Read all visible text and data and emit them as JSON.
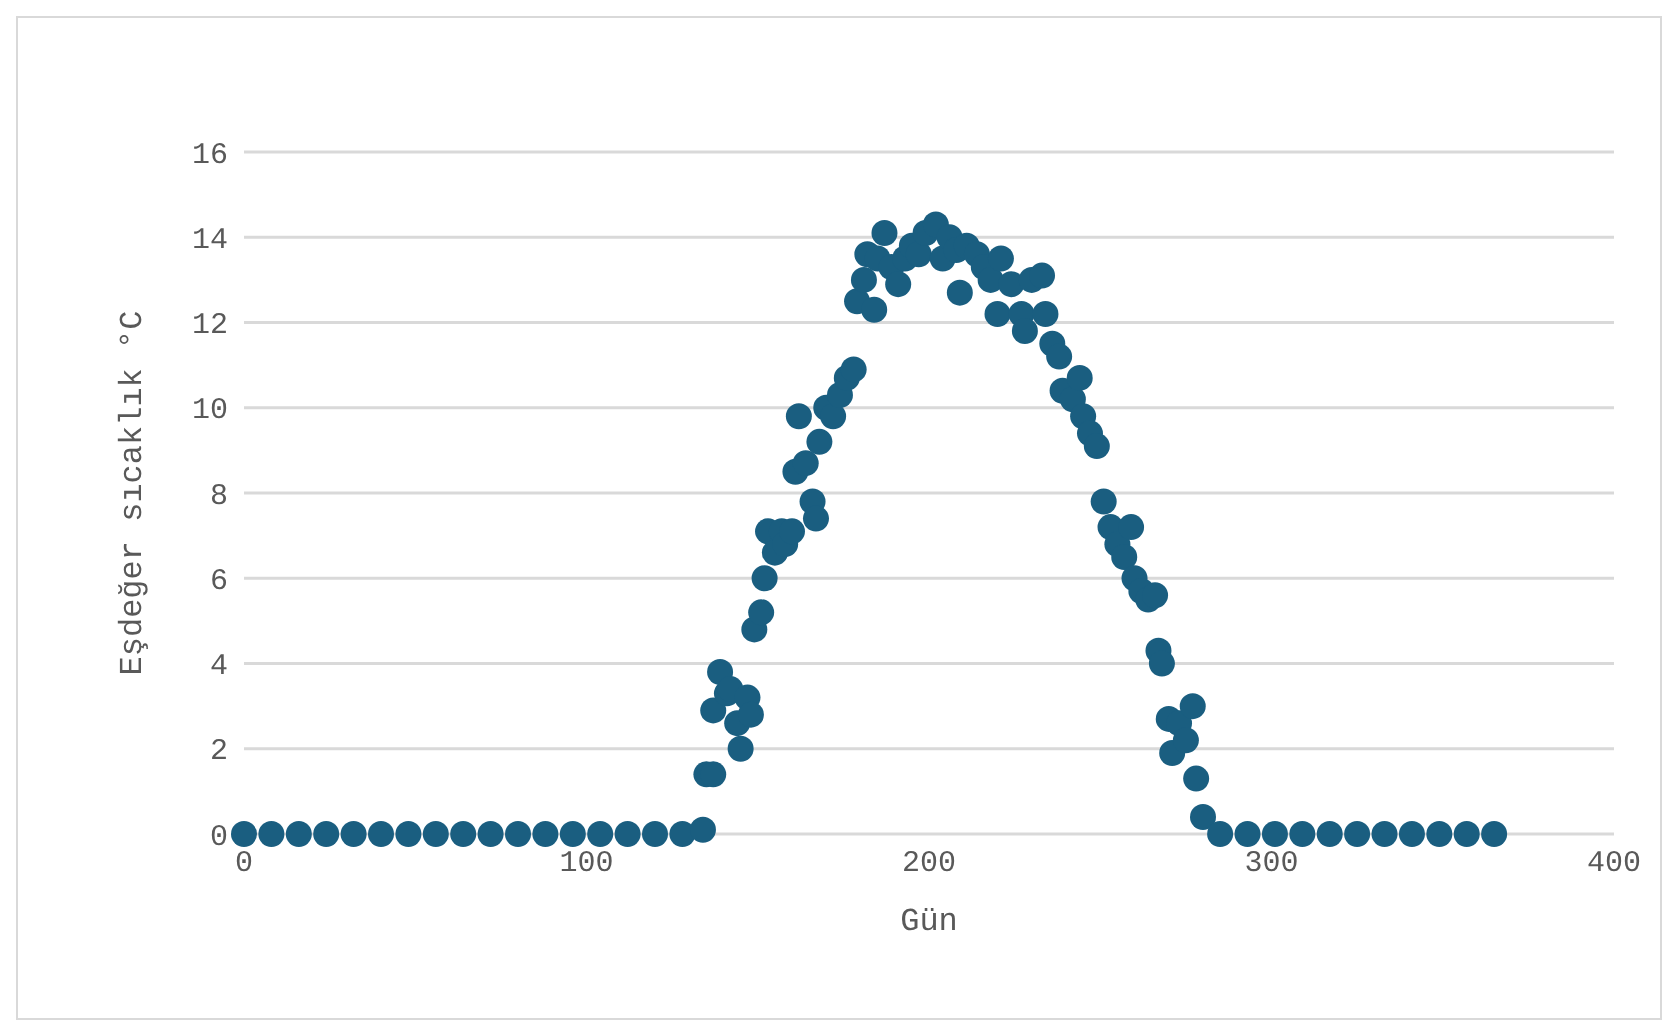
{
  "chart_data": {
    "type": "scatter",
    "xlabel": "Gün",
    "ylabel": "Eşdeğer sıcaklık °C",
    "xlim": [
      0,
      400
    ],
    "xticks": [
      0,
      100,
      200,
      300,
      400
    ],
    "ylim": [
      0,
      16
    ],
    "yticks": [
      0,
      2,
      4,
      6,
      8,
      10,
      12,
      14,
      16
    ],
    "grid": "y",
    "marker": "circle",
    "legend": false,
    "series": [
      {
        "color": "#1a5e80",
        "x": [
          0,
          8,
          16,
          24,
          32,
          40,
          48,
          56,
          64,
          72,
          80,
          88,
          96,
          104,
          112,
          120,
          128,
          134,
          135,
          137,
          137,
          139,
          141,
          142,
          144,
          145,
          147,
          148,
          149,
          151,
          152,
          153,
          155,
          157,
          158,
          160,
          161,
          162,
          164,
          166,
          167,
          168,
          170,
          172,
          174,
          176,
          178,
          179,
          181,
          182,
          184,
          185,
          187,
          189,
          191,
          193,
          195,
          197,
          199,
          202,
          204,
          206,
          208,
          209,
          211,
          214,
          216,
          218,
          220,
          221,
          224,
          227,
          228,
          230,
          233,
          234,
          236,
          238,
          239,
          242,
          244,
          245,
          247,
          249,
          251,
          253,
          255,
          257,
          259,
          260,
          262,
          264,
          266,
          267,
          268,
          270,
          271,
          273,
          275,
          277,
          278,
          280,
          285,
          293,
          301,
          309,
          317,
          325,
          333,
          341,
          349,
          357,
          365
        ],
        "values": [
          0,
          0,
          0,
          0,
          0,
          0,
          0,
          0,
          0,
          0,
          0,
          0,
          0,
          0,
          0,
          0,
          0,
          0.1,
          1.4,
          1.4,
          2.9,
          3.8,
          3.3,
          3.4,
          2.6,
          2.0,
          3.2,
          2.8,
          4.8,
          5.2,
          6.0,
          7.1,
          6.6,
          7.1,
          6.8,
          7.1,
          8.5,
          9.8,
          8.7,
          7.8,
          7.4,
          9.2,
          10.0,
          9.8,
          10.3,
          10.7,
          10.9,
          12.5,
          13.0,
          13.6,
          12.3,
          13.5,
          14.1,
          13.3,
          12.9,
          13.5,
          13.8,
          13.6,
          14.1,
          14.3,
          13.5,
          14.0,
          13.7,
          12.7,
          13.8,
          13.6,
          13.3,
          13.0,
          12.2,
          13.5,
          12.9,
          12.2,
          11.8,
          13.0,
          13.1,
          12.2,
          11.5,
          11.2,
          10.4,
          10.2,
          10.7,
          9.8,
          9.4,
          9.1,
          7.8,
          7.2,
          6.8,
          6.5,
          7.2,
          6.0,
          5.7,
          5.5,
          5.6,
          4.3,
          4.0,
          2.7,
          1.9,
          2.6,
          2.2,
          3.0,
          1.3,
          0.4,
          0,
          0,
          0,
          0,
          0,
          0,
          0,
          0,
          0,
          0,
          0
        ]
      }
    ]
  }
}
